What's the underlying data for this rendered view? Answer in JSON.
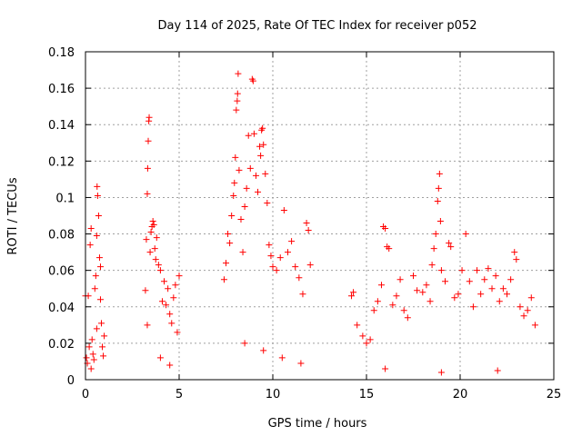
{
  "chart_data": {
    "type": "scatter",
    "title": "Day 114 of 2025, Rate Of TEC Index for receiver p052",
    "xlabel": "GPS time / hours",
    "ylabel": "ROTI / TECUs",
    "xlim": [
      0,
      25
    ],
    "ylim": [
      0,
      0.18
    ],
    "xticks": [
      "0",
      "5",
      "10",
      "15",
      "20",
      "25"
    ],
    "yticks": [
      "0",
      "0.02",
      "0.04",
      "0.06",
      "0.08",
      "0.1",
      "0.12",
      "0.14",
      "0.16",
      "0.18"
    ],
    "grid": true,
    "marker": "+",
    "series": [
      {
        "name": "ROTI",
        "color": "#ff0000",
        "points": [
          [
            0.0,
            0.046
          ],
          [
            0.05,
            0.012
          ],
          [
            0.1,
            0.009
          ],
          [
            0.15,
            0.046
          ],
          [
            0.2,
            0.018
          ],
          [
            0.25,
            0.074
          ],
          [
            0.3,
            0.083
          ],
          [
            0.35,
            0.022
          ],
          [
            0.4,
            0.014
          ],
          [
            0.45,
            0.011
          ],
          [
            0.5,
            0.05
          ],
          [
            0.55,
            0.057
          ],
          [
            0.6,
            0.079
          ],
          [
            0.62,
            0.106
          ],
          [
            0.65,
            0.101
          ],
          [
            0.7,
            0.09
          ],
          [
            0.75,
            0.067
          ],
          [
            0.8,
            0.044
          ],
          [
            0.85,
            0.031
          ],
          [
            0.9,
            0.018
          ],
          [
            0.95,
            0.013
          ],
          [
            1.0,
            0.024
          ],
          [
            0.3,
            0.006
          ],
          [
            0.6,
            0.028
          ],
          [
            0.8,
            0.062
          ],
          [
            3.2,
            0.049
          ],
          [
            3.25,
            0.077
          ],
          [
            3.3,
            0.102
          ],
          [
            3.32,
            0.116
          ],
          [
            3.35,
            0.131
          ],
          [
            3.38,
            0.142
          ],
          [
            3.4,
            0.144
          ],
          [
            3.45,
            0.07
          ],
          [
            3.5,
            0.081
          ],
          [
            3.55,
            0.084
          ],
          [
            3.6,
            0.087
          ],
          [
            3.65,
            0.085
          ],
          [
            3.7,
            0.072
          ],
          [
            3.75,
            0.066
          ],
          [
            3.8,
            0.078
          ],
          [
            3.9,
            0.063
          ],
          [
            4.0,
            0.06
          ],
          [
            4.1,
            0.043
          ],
          [
            4.2,
            0.054
          ],
          [
            4.3,
            0.041
          ],
          [
            4.4,
            0.05
          ],
          [
            4.5,
            0.036
          ],
          [
            4.6,
            0.031
          ],
          [
            4.7,
            0.045
          ],
          [
            4.8,
            0.052
          ],
          [
            4.9,
            0.026
          ],
          [
            5.0,
            0.057
          ],
          [
            3.3,
            0.03
          ],
          [
            4.0,
            0.012
          ],
          [
            4.5,
            0.008
          ],
          [
            7.4,
            0.055
          ],
          [
            7.5,
            0.064
          ],
          [
            7.6,
            0.08
          ],
          [
            7.7,
            0.075
          ],
          [
            7.8,
            0.09
          ],
          [
            7.9,
            0.101
          ],
          [
            7.95,
            0.108
          ],
          [
            8.0,
            0.122
          ],
          [
            8.05,
            0.148
          ],
          [
            8.1,
            0.153
          ],
          [
            8.12,
            0.157
          ],
          [
            8.15,
            0.168
          ],
          [
            8.2,
            0.115
          ],
          [
            8.3,
            0.088
          ],
          [
            8.4,
            0.07
          ],
          [
            8.5,
            0.095
          ],
          [
            8.6,
            0.105
          ],
          [
            8.7,
            0.134
          ],
          [
            8.8,
            0.116
          ],
          [
            8.9,
            0.165
          ],
          [
            8.95,
            0.164
          ],
          [
            9.0,
            0.135
          ],
          [
            9.1,
            0.112
          ],
          [
            9.2,
            0.103
          ],
          [
            9.3,
            0.128
          ],
          [
            9.35,
            0.123
          ],
          [
            9.4,
            0.137
          ],
          [
            9.45,
            0.138
          ],
          [
            9.5,
            0.129
          ],
          [
            9.6,
            0.113
          ],
          [
            9.7,
            0.097
          ],
          [
            9.8,
            0.074
          ],
          [
            9.9,
            0.068
          ],
          [
            10.0,
            0.062
          ],
          [
            10.2,
            0.06
          ],
          [
            10.4,
            0.067
          ],
          [
            10.6,
            0.093
          ],
          [
            10.8,
            0.07
          ],
          [
            11.0,
            0.076
          ],
          [
            11.2,
            0.062
          ],
          [
            11.4,
            0.056
          ],
          [
            11.6,
            0.047
          ],
          [
            11.8,
            0.086
          ],
          [
            11.9,
            0.082
          ],
          [
            12.0,
            0.063
          ],
          [
            8.5,
            0.02
          ],
          [
            9.5,
            0.016
          ],
          [
            10.5,
            0.012
          ],
          [
            11.5,
            0.009
          ],
          [
            14.2,
            0.046
          ],
          [
            14.3,
            0.048
          ],
          [
            14.5,
            0.03
          ],
          [
            14.8,
            0.024
          ],
          [
            15.0,
            0.02
          ],
          [
            15.2,
            0.022
          ],
          [
            15.4,
            0.038
          ],
          [
            15.6,
            0.043
          ],
          [
            15.8,
            0.052
          ],
          [
            15.9,
            0.084
          ],
          [
            16.0,
            0.083
          ],
          [
            16.1,
            0.073
          ],
          [
            16.2,
            0.072
          ],
          [
            16.4,
            0.041
          ],
          [
            16.6,
            0.046
          ],
          [
            16.8,
            0.055
          ],
          [
            17.0,
            0.038
          ],
          [
            17.2,
            0.034
          ],
          [
            17.5,
            0.057
          ],
          [
            17.7,
            0.049
          ],
          [
            18.0,
            0.048
          ],
          [
            18.2,
            0.052
          ],
          [
            18.4,
            0.043
          ],
          [
            18.5,
            0.063
          ],
          [
            18.6,
            0.072
          ],
          [
            18.7,
            0.08
          ],
          [
            18.8,
            0.098
          ],
          [
            18.85,
            0.105
          ],
          [
            18.9,
            0.113
          ],
          [
            18.95,
            0.087
          ],
          [
            19.0,
            0.06
          ],
          [
            19.2,
            0.054
          ],
          [
            19.4,
            0.075
          ],
          [
            19.5,
            0.073
          ],
          [
            19.7,
            0.045
          ],
          [
            19.9,
            0.047
          ],
          [
            20.1,
            0.06
          ],
          [
            20.3,
            0.08
          ],
          [
            20.5,
            0.054
          ],
          [
            20.7,
            0.04
          ],
          [
            20.9,
            0.06
          ],
          [
            21.1,
            0.047
          ],
          [
            21.3,
            0.055
          ],
          [
            21.5,
            0.061
          ],
          [
            21.7,
            0.05
          ],
          [
            21.9,
            0.057
          ],
          [
            22.1,
            0.043
          ],
          [
            22.3,
            0.05
          ],
          [
            22.5,
            0.047
          ],
          [
            22.7,
            0.055
          ],
          [
            22.9,
            0.07
          ],
          [
            23.0,
            0.066
          ],
          [
            23.2,
            0.04
          ],
          [
            23.4,
            0.035
          ],
          [
            23.6,
            0.038
          ],
          [
            23.8,
            0.045
          ],
          [
            24.0,
            0.03
          ],
          [
            16.0,
            0.006
          ],
          [
            19.0,
            0.004
          ],
          [
            22.0,
            0.005
          ]
        ]
      }
    ]
  }
}
